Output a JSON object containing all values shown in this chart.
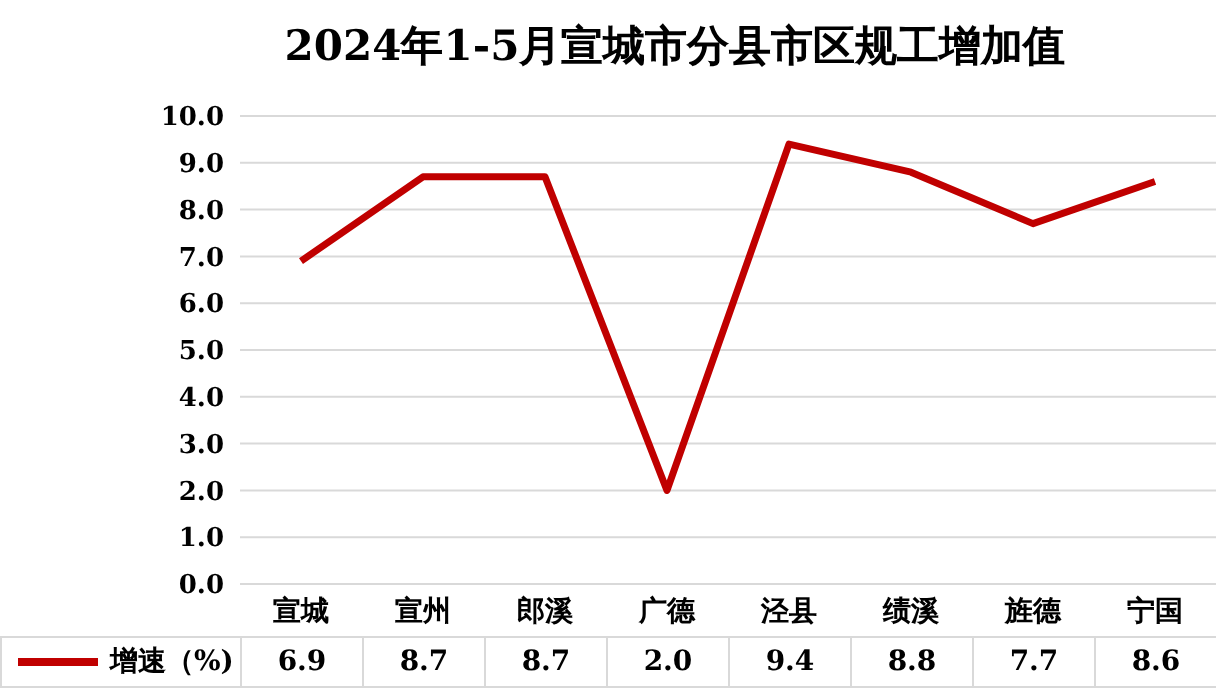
{
  "chart_data": {
    "type": "line",
    "title": "2024年1-5月宣城市分县市区规工增加值",
    "categories": [
      "宣城",
      "宣州",
      "郎溪",
      "广德",
      "泾县",
      "绩溪",
      "旌德",
      "宁国"
    ],
    "series": [
      {
        "name": "增速（%)",
        "color": "#c00000",
        "values": [
          6.9,
          8.7,
          8.7,
          2.0,
          9.4,
          8.8,
          7.7,
          8.6
        ],
        "value_labels": [
          "6.9",
          "8.7",
          "8.7",
          "2.0",
          "9.4",
          "8.8",
          "7.7",
          "8.6"
        ]
      }
    ],
    "ylim": [
      0,
      10
    ],
    "yticks": [
      {
        "value": 0,
        "label": "0.0"
      },
      {
        "value": 1,
        "label": "1.0"
      },
      {
        "value": 2,
        "label": "2.0"
      },
      {
        "value": 3,
        "label": "3.0"
      },
      {
        "value": 4,
        "label": "4.0"
      },
      {
        "value": 5,
        "label": "5.0"
      },
      {
        "value": 6,
        "label": "6.0"
      },
      {
        "value": 7,
        "label": "7.0"
      },
      {
        "value": 8,
        "label": "8.0"
      },
      {
        "value": 9,
        "label": "9.0"
      },
      {
        "value": 10,
        "label": "10.0"
      }
    ],
    "grid": "y",
    "legend": "bottom",
    "marker": "none",
    "line_style": "solid"
  }
}
